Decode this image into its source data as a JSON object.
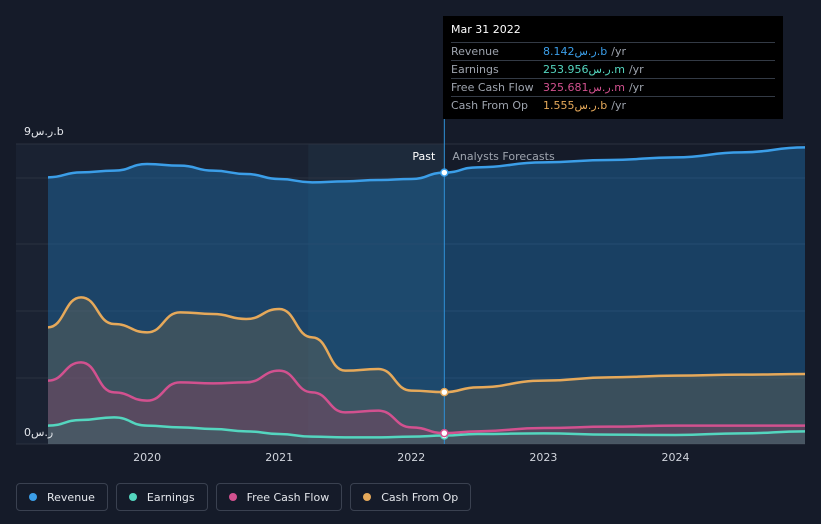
{
  "chart_data": {
    "type": "area",
    "y_max_label": "9ر.س.b",
    "y_min_label": "0ر.س",
    "ylim": [
      0,
      9
    ],
    "xlim": [
      2019.25,
      2024.98
    ],
    "x_ticks": [
      {
        "value": 2020.0,
        "label": "2020"
      },
      {
        "value": 2021.0,
        "label": "2021"
      },
      {
        "value": 2022.0,
        "label": "2022"
      },
      {
        "value": 2023.0,
        "label": "2023"
      },
      {
        "value": 2024.0,
        "label": "2024"
      }
    ],
    "past_label": "Past",
    "forecast_label": "Analysts Forecasts",
    "divider_x": 2022.25,
    "highlight_start": 2021.22,
    "series": [
      {
        "name": "Revenue",
        "color": "#3b9ee8",
        "fill": true,
        "points": [
          [
            2019.25,
            8.0
          ],
          [
            2019.5,
            8.15
          ],
          [
            2019.75,
            8.2
          ],
          [
            2020.0,
            8.4
          ],
          [
            2020.25,
            8.35
          ],
          [
            2020.5,
            8.2
          ],
          [
            2020.75,
            8.1
          ],
          [
            2021.0,
            7.95
          ],
          [
            2021.25,
            7.85
          ],
          [
            2021.5,
            7.88
          ],
          [
            2021.75,
            7.92
          ],
          [
            2022.0,
            7.95
          ],
          [
            2022.25,
            8.142
          ],
          [
            2022.5,
            8.3
          ],
          [
            2023.0,
            8.45
          ],
          [
            2023.5,
            8.52
          ],
          [
            2024.0,
            8.6
          ],
          [
            2024.5,
            8.75
          ],
          [
            2024.98,
            8.9
          ]
        ]
      },
      {
        "name": "Earnings",
        "color": "#54d6bf",
        "fill": true,
        "points": [
          [
            2019.25,
            0.55
          ],
          [
            2019.5,
            0.72
          ],
          [
            2019.75,
            0.8
          ],
          [
            2020.0,
            0.55
          ],
          [
            2020.25,
            0.5
          ],
          [
            2020.5,
            0.45
          ],
          [
            2020.75,
            0.38
          ],
          [
            2021.0,
            0.3
          ],
          [
            2021.25,
            0.22
          ],
          [
            2021.5,
            0.2
          ],
          [
            2021.75,
            0.2
          ],
          [
            2022.0,
            0.22
          ],
          [
            2022.25,
            0.254
          ],
          [
            2022.5,
            0.3
          ],
          [
            2023.0,
            0.32
          ],
          [
            2023.5,
            0.28
          ],
          [
            2024.0,
            0.27
          ],
          [
            2024.5,
            0.32
          ],
          [
            2024.98,
            0.38
          ]
        ]
      },
      {
        "name": "Free Cash Flow",
        "color": "#d2518f",
        "fill": true,
        "points": [
          [
            2019.25,
            1.9
          ],
          [
            2019.5,
            2.45
          ],
          [
            2019.75,
            1.55
          ],
          [
            2020.0,
            1.3
          ],
          [
            2020.25,
            1.85
          ],
          [
            2020.5,
            1.82
          ],
          [
            2020.75,
            1.85
          ],
          [
            2021.0,
            2.2
          ],
          [
            2021.25,
            1.55
          ],
          [
            2021.5,
            0.95
          ],
          [
            2021.75,
            1.0
          ],
          [
            2022.0,
            0.5
          ],
          [
            2022.25,
            0.326
          ],
          [
            2022.5,
            0.38
          ],
          [
            2023.0,
            0.48
          ],
          [
            2023.5,
            0.52
          ],
          [
            2024.0,
            0.55
          ],
          [
            2024.5,
            0.55
          ],
          [
            2024.98,
            0.55
          ]
        ]
      },
      {
        "name": "Cash From Op",
        "color": "#e6a95a",
        "fill": true,
        "points": [
          [
            2019.25,
            3.5
          ],
          [
            2019.5,
            4.4
          ],
          [
            2019.75,
            3.6
          ],
          [
            2020.0,
            3.35
          ],
          [
            2020.25,
            3.95
          ],
          [
            2020.5,
            3.9
          ],
          [
            2020.75,
            3.75
          ],
          [
            2021.0,
            4.05
          ],
          [
            2021.25,
            3.2
          ],
          [
            2021.5,
            2.2
          ],
          [
            2021.75,
            2.25
          ],
          [
            2022.0,
            1.6
          ],
          [
            2022.25,
            1.555
          ],
          [
            2022.5,
            1.7
          ],
          [
            2023.0,
            1.9
          ],
          [
            2023.5,
            2.0
          ],
          [
            2024.0,
            2.05
          ],
          [
            2024.5,
            2.08
          ],
          [
            2024.98,
            2.1
          ]
        ]
      }
    ]
  },
  "tooltip": {
    "date": "Mar 31 2022",
    "rows": [
      {
        "label": "Revenue",
        "value": "8.142ر.س.b",
        "unit": "/yr",
        "color": "#3b9ee8"
      },
      {
        "label": "Earnings",
        "value": "253.956ر.س.m",
        "unit": "/yr",
        "color": "#54d6bf"
      },
      {
        "label": "Free Cash Flow",
        "value": "325.681ر.س.m",
        "unit": "/yr",
        "color": "#d2518f"
      },
      {
        "label": "Cash From Op",
        "value": "1.555ر.س.b",
        "unit": "/yr",
        "color": "#e6a95a"
      }
    ]
  },
  "legend": [
    {
      "label": "Revenue",
      "color": "#3b9ee8"
    },
    {
      "label": "Earnings",
      "color": "#54d6bf"
    },
    {
      "label": "Free Cash Flow",
      "color": "#d2518f"
    },
    {
      "label": "Cash From Op",
      "color": "#e6a95a"
    }
  ]
}
